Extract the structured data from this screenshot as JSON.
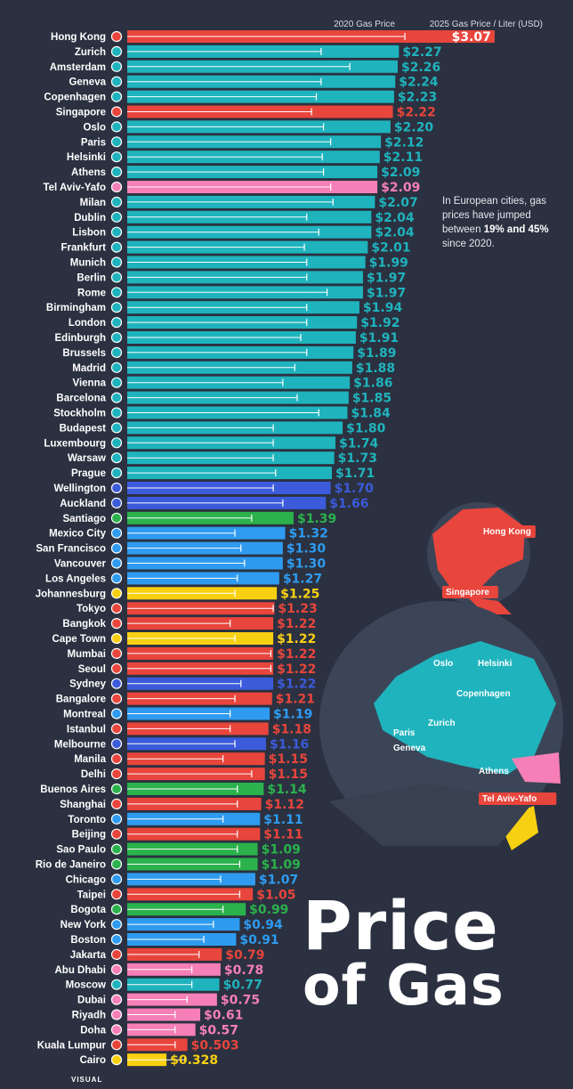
{
  "header": {
    "legend_2020": "2020 Gas Price",
    "legend_2025": "2025 Gas Price / Liter (USD)"
  },
  "note": {
    "part1": "In European cities, gas prices have jumped between",
    "pct_low": "19%",
    "and_word": "and",
    "pct_high": "45%",
    "part2": "since 2020."
  },
  "title": {
    "line1": "Price",
    "line2": "of Gas"
  },
  "map_labels": [
    "Hong Kong",
    "Singapore",
    "Oslo",
    "Helsinki",
    "Copenhagen",
    "Zurich",
    "Paris",
    "Geneva",
    "Athens",
    "Tel Aviv-Yafo"
  ],
  "footer": {
    "brand": "VISUAL"
  },
  "colors": {
    "europe": "#1fb3bd",
    "asia": "#e8453c",
    "middle_east": "#f57fb6",
    "oceania": "#3b5bdb",
    "north_america": "#2e9bf0",
    "south_america": "#2bb24c",
    "africa": "#f8d012",
    "background": "#2b3140"
  },
  "chart_data": {
    "type": "bar",
    "title": "Price of Gas",
    "xlabel": "",
    "ylabel": "",
    "xlim": [
      0,
      3.1
    ],
    "legend": [
      "2020 Gas Price",
      "2025 Gas Price / Liter (USD)"
    ],
    "categories": [
      "Hong Kong",
      "Zurich",
      "Amsterdam",
      "Geneva",
      "Copenhagen",
      "Singapore",
      "Oslo",
      "Paris",
      "Helsinki",
      "Athens",
      "Tel Aviv-Yafo",
      "Milan",
      "Dublin",
      "Lisbon",
      "Frankfurt",
      "Munich",
      "Berlin",
      "Rome",
      "Birmingham",
      "London",
      "Edinburgh",
      "Brussels",
      "Madrid",
      "Vienna",
      "Barcelona",
      "Stockholm",
      "Budapest",
      "Luxembourg",
      "Warsaw",
      "Prague",
      "Wellington",
      "Auckland",
      "Santiago",
      "Mexico City",
      "San Francisco",
      "Vancouver",
      "Los Angeles",
      "Johannesburg",
      "Tokyo",
      "Bangkok",
      "Cape Town",
      "Mumbai",
      "Seoul",
      "Sydney",
      "Bangalore",
      "Montreal",
      "Istanbul",
      "Melbourne",
      "Manila",
      "Delhi",
      "Buenos Aires",
      "Shanghai",
      "Toronto",
      "Beijing",
      "Sao Paulo",
      "Rio de Janeiro",
      "Chicago",
      "Taipei",
      "Bogota",
      "New York",
      "Boston",
      "Jakarta",
      "Abu Dhabi",
      "Moscow",
      "Dubai",
      "Riyadh",
      "Doha",
      "Kuala Lumpur",
      "Cairo"
    ],
    "series": [
      {
        "name": "2025 Gas Price / Liter (USD)",
        "values": [
          3.07,
          2.27,
          2.26,
          2.24,
          2.23,
          2.22,
          2.2,
          2.12,
          2.11,
          2.09,
          2.09,
          2.07,
          2.04,
          2.04,
          2.01,
          1.99,
          1.97,
          1.97,
          1.94,
          1.92,
          1.91,
          1.89,
          1.88,
          1.86,
          1.85,
          1.84,
          1.8,
          1.74,
          1.73,
          1.71,
          1.7,
          1.66,
          1.39,
          1.32,
          1.3,
          1.3,
          1.27,
          1.25,
          1.23,
          1.22,
          1.22,
          1.22,
          1.22,
          1.22,
          1.21,
          1.19,
          1.18,
          1.16,
          1.15,
          1.15,
          1.14,
          1.12,
          1.11,
          1.11,
          1.09,
          1.09,
          1.07,
          1.05,
          0.99,
          0.94,
          0.91,
          0.79,
          0.78,
          0.77,
          0.75,
          0.61,
          0.57,
          0.503,
          0.328
        ]
      },
      {
        "name": "2020 Gas Price",
        "values": [
          2.32,
          1.62,
          1.86,
          1.62,
          1.58,
          1.54,
          1.64,
          1.7,
          1.63,
          1.64,
          1.7,
          1.72,
          1.5,
          1.6,
          1.48,
          1.5,
          1.5,
          1.67,
          1.5,
          1.5,
          1.45,
          1.5,
          1.4,
          1.3,
          1.42,
          1.6,
          1.22,
          1.22,
          1.22,
          1.24,
          1.22,
          1.3,
          1.04,
          0.9,
          0.95,
          0.98,
          0.92,
          0.9,
          1.22,
          0.86,
          0.9,
          1.2,
          1.2,
          0.95,
          0.9,
          0.86,
          0.86,
          0.9,
          0.8,
          1.04,
          0.92,
          0.92,
          0.8,
          0.92,
          0.92,
          0.94,
          0.78,
          0.94,
          0.8,
          0.72,
          0.64,
          0.6,
          0.54,
          0.54,
          0.5,
          0.4,
          0.4,
          0.4,
          0.48
        ]
      }
    ],
    "labels": [
      "$3.07",
      "$2.27",
      "$2.26",
      "$2.24",
      "$2.23",
      "$2.22",
      "$2.20",
      "$2.12",
      "$2.11",
      "$2.09",
      "$2.09",
      "$2.07",
      "$2.04",
      "$2.04",
      "$2.01",
      "$1.99",
      "$1.97",
      "$1.97",
      "$1.94",
      "$1.92",
      "$1.91",
      "$1.89",
      "$1.88",
      "$1.86",
      "$1.85",
      "$1.84",
      "$1.80",
      "$1.74",
      "$1.73",
      "$1.71",
      "$1.70",
      "$1.66",
      "$1.39",
      "$1.32",
      "$1.30",
      "$1.30",
      "$1.27",
      "$1.25",
      "$1.23",
      "$1.22",
      "$1.22",
      "$1.22",
      "$1.22",
      "$1.22",
      "$1.21",
      "$1.19",
      "$1.18",
      "$1.16",
      "$1.15",
      "$1.15",
      "$1.14",
      "$1.12",
      "$1.11",
      "$1.11",
      "$1.09",
      "$1.09",
      "$1.07",
      "$1.05",
      "$0.99",
      "$0.94",
      "$0.91",
      "$0.79",
      "$0.78",
      "$0.77",
      "$0.75",
      "$0.61",
      "$0.57",
      "$0.503",
      "$0.328"
    ],
    "regions": [
      "asia",
      "europe",
      "europe",
      "europe",
      "europe",
      "asia",
      "europe",
      "europe",
      "europe",
      "europe",
      "middle_east",
      "europe",
      "europe",
      "europe",
      "europe",
      "europe",
      "europe",
      "europe",
      "europe",
      "europe",
      "europe",
      "europe",
      "europe",
      "europe",
      "europe",
      "europe",
      "europe",
      "europe",
      "europe",
      "europe",
      "oceania",
      "oceania",
      "south_america",
      "north_america",
      "north_america",
      "north_america",
      "north_america",
      "africa",
      "asia",
      "asia",
      "africa",
      "asia",
      "asia",
      "oceania",
      "asia",
      "north_america",
      "asia",
      "oceania",
      "asia",
      "asia",
      "south_america",
      "asia",
      "north_america",
      "asia",
      "south_america",
      "south_america",
      "north_america",
      "asia",
      "south_america",
      "north_america",
      "north_america",
      "asia",
      "middle_east",
      "europe",
      "middle_east",
      "middle_east",
      "middle_east",
      "asia",
      "africa"
    ]
  }
}
